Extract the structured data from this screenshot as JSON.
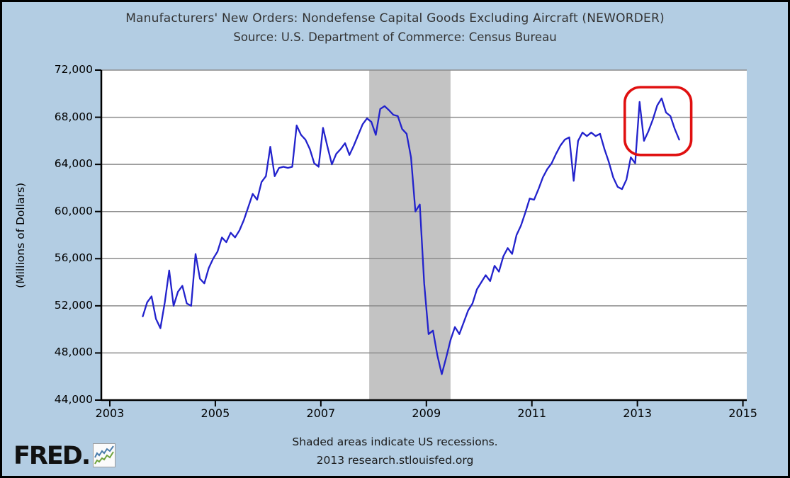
{
  "title": {
    "line1": "Manufacturers' New Orders: Nondefense Capital Goods Excluding Aircraft (NEWORDER)",
    "line2": "Source: U.S. Department of Commerce: Census Bureau"
  },
  "y_axis_title": "(Millions of Dollars)",
  "footer": {
    "line1": "Shaded areas indicate US recessions.",
    "line2": "2013 research.stlouisfed.org"
  },
  "logo": {
    "text": "FRED."
  },
  "colors": {
    "background": "#B3CDE3",
    "plot_background": "#FFFFFF",
    "gridline": "#8C8C8C",
    "recession": "#C3C3C3",
    "line": "#2222CC",
    "annotation": "#E01010",
    "axis": "#000000"
  },
  "chart_data": {
    "type": "line",
    "title": "Manufacturers' New Orders: Nondefense Capital Goods Excluding Aircraft (NEWORDER)",
    "subtitle": "Source: U.S. Department of Commerce: Census Bureau",
    "xlabel": "",
    "ylabel": "(Millions of Dollars)",
    "grid": "horizontal",
    "legend_position": "none",
    "xlim": [
      2002.839,
      2015.073
    ],
    "ylim": [
      44000,
      72000
    ],
    "xticks": {
      "values": [
        2003,
        2005,
        2007,
        2009,
        2011,
        2013,
        2015
      ],
      "labels": [
        "2003",
        "2005",
        "2007",
        "2009",
        "2011",
        "2013",
        "2015"
      ]
    },
    "yticks": {
      "values": [
        44000,
        48000,
        52000,
        56000,
        60000,
        64000,
        68000,
        72000
      ],
      "labels": [
        "44,000",
        "48,000",
        "52,000",
        "56,000",
        "60,000",
        "64,000",
        "68,000",
        "72,000"
      ]
    },
    "series": [
      {
        "name": "NEWORDER",
        "color": "#2222CC",
        "frequency": "monthly",
        "start": "2003-08",
        "end": "2013-10",
        "values": [
          51100,
          52300,
          52800,
          50900,
          50100,
          52300,
          55000,
          52000,
          53200,
          53700,
          52200,
          52000,
          56400,
          54300,
          53900,
          55200,
          56000,
          56600,
          57800,
          57400,
          58200,
          57800,
          58400,
          59300,
          60400,
          61500,
          61000,
          62500,
          63000,
          65500,
          63000,
          63700,
          63800,
          63700,
          63800,
          67300,
          66500,
          66100,
          65300,
          64100,
          63800,
          67100,
          65500,
          64000,
          64900,
          65300,
          65800,
          64800,
          65600,
          66500,
          67400,
          67900,
          67600,
          66500,
          68700,
          68950,
          68600,
          68200,
          68100,
          67000,
          66600,
          64600,
          60000,
          60600,
          53900,
          49600,
          49900,
          47800,
          46200,
          47600,
          49100,
          50200,
          49600,
          50600,
          51600,
          52200,
          53400,
          54000,
          54600,
          54100,
          55400,
          54900,
          56200,
          56900,
          56400,
          58000,
          58800,
          59900,
          61100,
          61000,
          61900,
          62900,
          63600,
          64100,
          64900,
          65600,
          66100,
          66300,
          62600,
          66000,
          66700,
          66400,
          66700,
          66400,
          66600,
          65300,
          64200,
          62900,
          62100,
          61900,
          62700,
          64600,
          64100,
          69300,
          66000,
          66800,
          67800,
          69000,
          69600,
          68400,
          68100,
          67000,
          66100
        ]
      }
    ],
    "recession_shading": [
      {
        "start": 2007.917,
        "end": 2009.458,
        "label": "US recession"
      }
    ],
    "annotation": {
      "shape": "rounded-rect",
      "color": "#E01010",
      "t0": 2012.76,
      "t1": 2014.02,
      "v0": 64800,
      "v1": 70550
    }
  }
}
